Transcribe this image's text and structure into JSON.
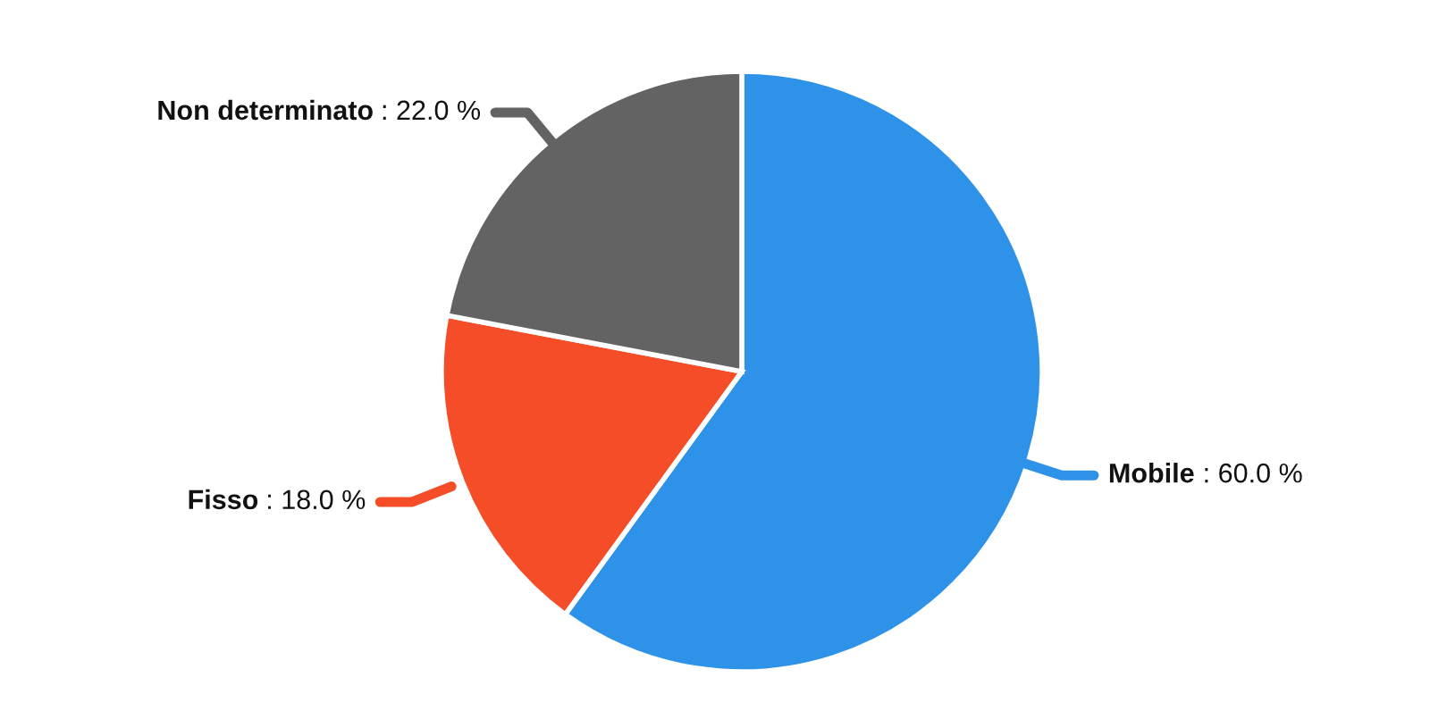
{
  "chart_data": {
    "type": "pie",
    "categories": [
      "Mobile",
      "Fisso",
      "Non determinato"
    ],
    "values": [
      60,
      18,
      22
    ],
    "value_labels": [
      ": 60.0 %",
      ": 18.0 %",
      ": 22.0 %"
    ],
    "colors": [
      "#2e93e8",
      "#f44d27",
      "#636363"
    ],
    "legend": false
  }
}
